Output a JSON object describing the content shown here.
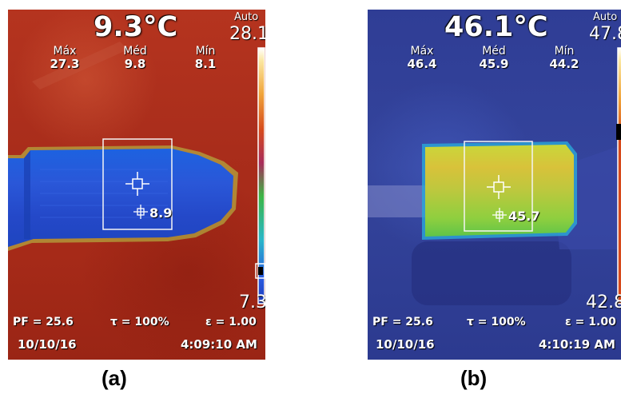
{
  "panels": [
    {
      "id": "a",
      "temperature": "9.3°C",
      "stats": [
        {
          "label": "Máx",
          "value": "27.3"
        },
        {
          "label": "Méd",
          "value": "9.8"
        },
        {
          "label": "Mín",
          "value": "8.1"
        }
      ],
      "auto_label": "Auto",
      "scale_max": "28.1",
      "scale_min": "7.3",
      "spot_value": "8.9",
      "pf": "PF = 25.6",
      "tau": "τ = 100%",
      "epsilon": "ε = 1.00",
      "date": "10/10/16",
      "time": "4:09:10 AM",
      "caption": "(a)"
    },
    {
      "id": "b",
      "temperature": "46.1°C",
      "stats": [
        {
          "label": "Máx",
          "value": "46.4"
        },
        {
          "label": "Méd",
          "value": "45.9"
        },
        {
          "label": "Mín",
          "value": "44.2"
        }
      ],
      "auto_label": "Auto",
      "scale_max": "47.8",
      "scale_min": "42.8",
      "spot_value": "45.7",
      "pf": "PF = 25.6",
      "tau": "τ = 100%",
      "epsilon": "ε = 1.00",
      "date": "10/10/16",
      "time": "4:10:19 AM",
      "caption": "(b)"
    }
  ],
  "colors": {
    "hot_background": "#a92d1b",
    "cold_object": "#2a4fe0",
    "cool_background": "#2f3d95",
    "warm_object": "#9ccd3c",
    "overlay_text": "#ffffff"
  }
}
